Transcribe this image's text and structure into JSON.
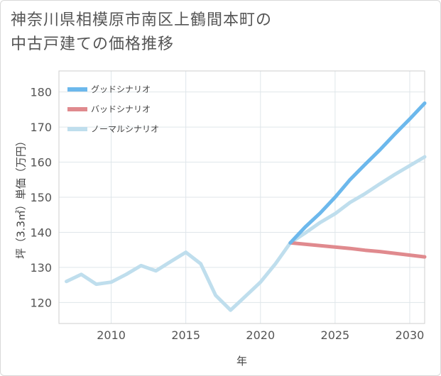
{
  "chart_data": {
    "type": "line",
    "title_line1": "神奈川県相模原市南区上鶴間本町の",
    "title_line2": "中古戸建ての価格推移",
    "xlabel": "年",
    "ylabel": "坪（3.3㎡）単価（万円）",
    "xlim": [
      2006.5,
      2031
    ],
    "ylim": [
      114,
      186
    ],
    "x_ticks": [
      2010,
      2015,
      2020,
      2025,
      2030
    ],
    "y_ticks": [
      120,
      130,
      140,
      150,
      160,
      170,
      180
    ],
    "legend_position": "top-left",
    "series": [
      {
        "name": "グッドシナリオ",
        "color": "#6cb8ec",
        "x": [
          2022,
          2023,
          2024,
          2025,
          2026,
          2027,
          2028,
          2029,
          2030,
          2031
        ],
        "y": [
          137,
          141.5,
          145.5,
          150,
          155,
          159.3,
          163.5,
          168,
          172.3,
          176.8
        ]
      },
      {
        "name": "バッドシナリオ",
        "color": "#e08a8e",
        "x": [
          2022,
          2023,
          2024,
          2025,
          2026,
          2027,
          2028,
          2029,
          2030,
          2031
        ],
        "y": [
          137,
          136.6,
          136.2,
          135.8,
          135.4,
          134.9,
          134.5,
          134.0,
          133.5,
          133.0
        ]
      },
      {
        "name": "ノーマルシナリオ",
        "color": "#bfdeed",
        "x": [
          2007,
          2008,
          2009,
          2010,
          2011,
          2012,
          2013,
          2014,
          2015,
          2016,
          2017,
          2018,
          2019,
          2020,
          2021,
          2022,
          2023,
          2024,
          2025,
          2026,
          2027,
          2028,
          2029,
          2030,
          2031
        ],
        "y": [
          126,
          128,
          125.2,
          125.8,
          128,
          130.5,
          129,
          131.7,
          134.3,
          131,
          122,
          117.8,
          121.8,
          125.8,
          131,
          137,
          139.8,
          142.8,
          145.3,
          148.5,
          151,
          153.8,
          156.5,
          159,
          161.5
        ]
      }
    ]
  }
}
